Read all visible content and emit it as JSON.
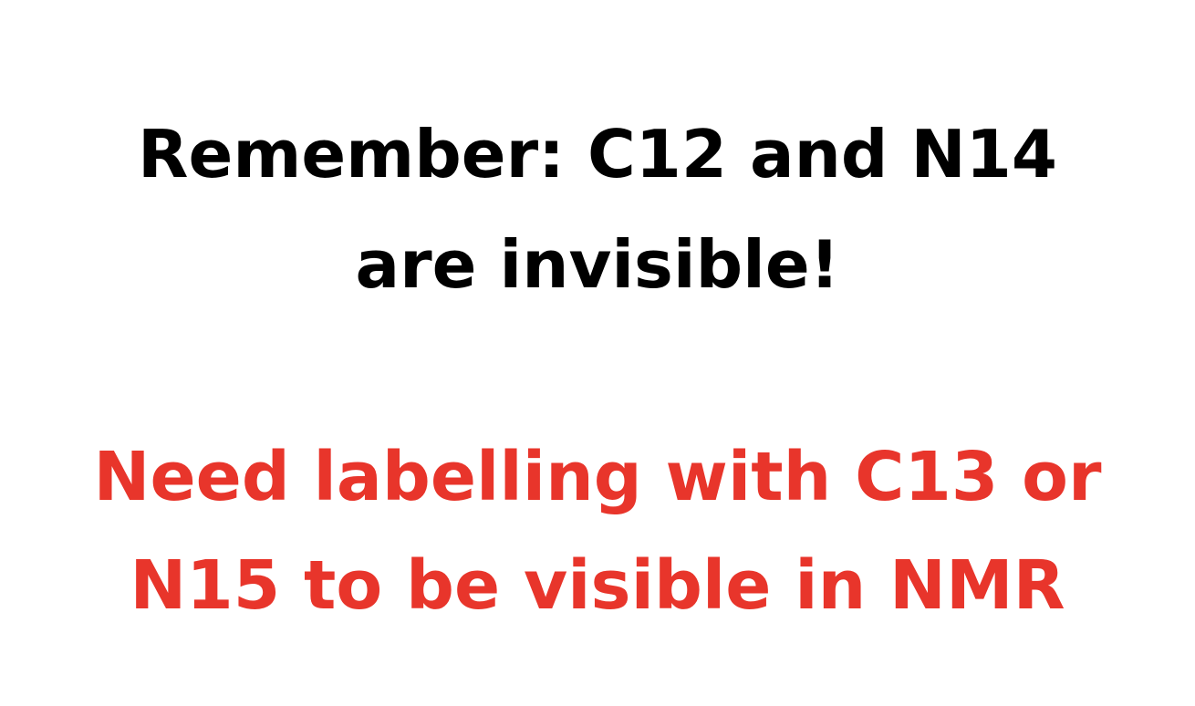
{
  "slide": {
    "reminder_line_1": "Remember: C12 and N14",
    "reminder_line_2": "are invisible!",
    "note_line_1": "Need labelling with C13 or",
    "note_line_2": "N15 to be visible in NMR"
  },
  "colors": {
    "reminder_text": "#000000",
    "note_text": "#e8352b",
    "background": "#ffffff"
  }
}
